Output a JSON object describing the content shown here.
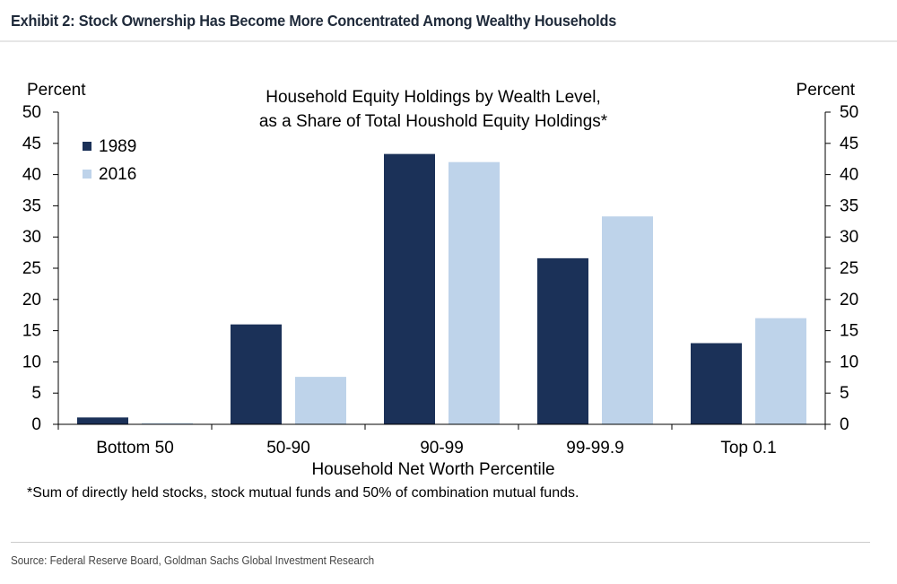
{
  "exhibit_title": "Exhibit 2: Stock Ownership Has Become More Concentrated Among Wealthy Households",
  "footnote": "*Sum of directly held stocks, stock mutual funds and 50% of combination mutual funds.",
  "source": "Source: Federal Reserve Board, Goldman Sachs Global Investment Research",
  "colors": {
    "series_1989": "#1b3158",
    "series_2016": "#bed3ea",
    "axis": "#000000"
  },
  "chart_data": {
    "type": "bar",
    "title_line1": "Household Equity Holdings by Wealth Level,",
    "title_line2": "as a Share of Total Houshold Equity Holdings*",
    "xlabel": "Household Net Worth Percentile",
    "ylabel_left": "Percent",
    "ylabel_right": "Percent",
    "ylim": [
      0,
      50
    ],
    "yticks": [
      0,
      5,
      10,
      15,
      20,
      25,
      30,
      35,
      40,
      45,
      50
    ],
    "legend_position": "top-left",
    "grid": false,
    "categories": [
      "Bottom 50",
      "50-90",
      "90-99",
      "99-99.9",
      "Top 0.1"
    ],
    "series": [
      {
        "name": "1989",
        "values": [
          1.1,
          16.0,
          43.3,
          26.6,
          13.0
        ]
      },
      {
        "name": "2016",
        "values": [
          0.2,
          7.6,
          42.0,
          33.3,
          17.0
        ]
      }
    ]
  }
}
